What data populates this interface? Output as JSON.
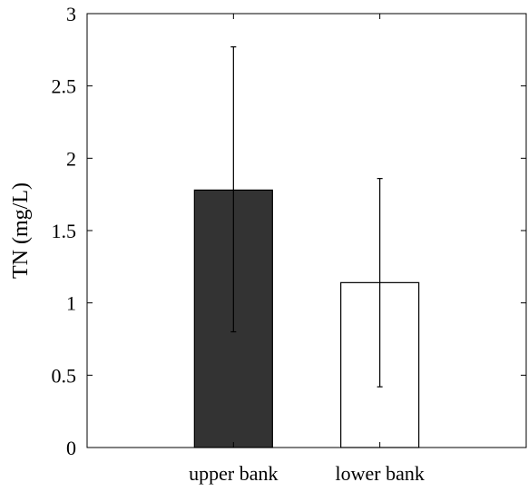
{
  "chart_data": {
    "type": "bar",
    "categories": [
      "upper bank",
      "lower bank"
    ],
    "values": [
      1.78,
      1.14
    ],
    "error_low": [
      0.8,
      0.42
    ],
    "error_high": [
      2.77,
      1.86
    ],
    "bar_colors": [
      "#333333",
      "#ffffff"
    ],
    "xlabel": "",
    "ylabel": "TN (mg/L)",
    "ylim": [
      0,
      3
    ],
    "yticks": [
      0,
      0.5,
      1,
      1.5,
      2,
      2.5,
      3
    ],
    "ytick_labels": [
      "0",
      "0.5",
      "1",
      "1.5",
      "2",
      "2.5",
      "3"
    ],
    "grid": false,
    "legend": "none"
  }
}
